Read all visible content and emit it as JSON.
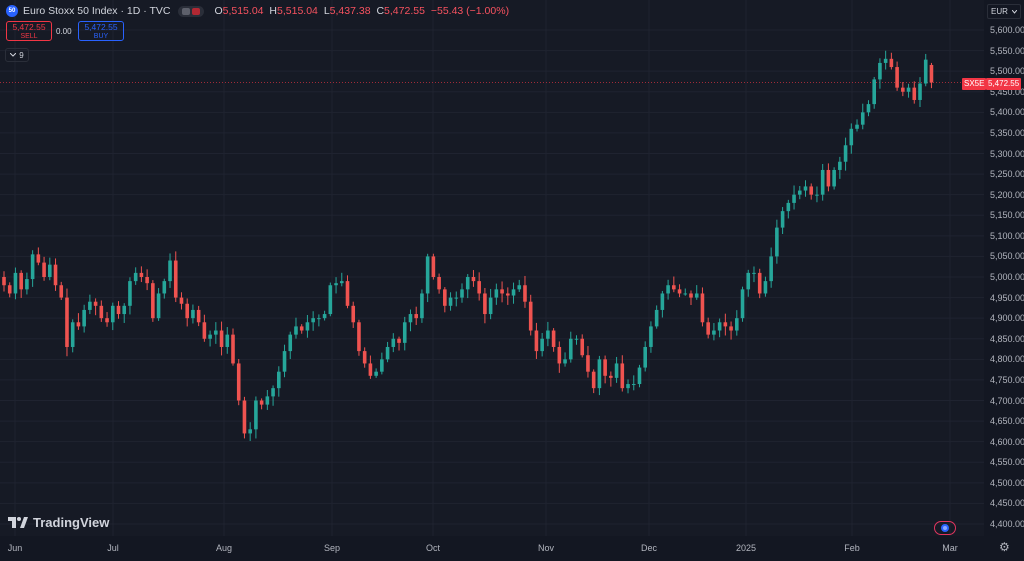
{
  "header": {
    "logo_text": "50",
    "title": "Euro Stoxx 50 Index · 1D · TVC",
    "ohlc": [
      {
        "label": "O",
        "value": "5,515.04"
      },
      {
        "label": "H",
        "value": "5,515.04"
      },
      {
        "label": "L",
        "value": "5,437.38"
      },
      {
        "label": "C",
        "value": "5,472.55"
      },
      {
        "label": "",
        "value": "−55.43 (−1.00%)"
      }
    ]
  },
  "trade": {
    "sell_price": "5,472.55",
    "sell_label": "SELL",
    "spread": "0.00",
    "buy_price": "5,472.55",
    "buy_label": "BUY"
  },
  "indicators_count": "9",
  "currency": "EUR",
  "symbol_tag": "SX5E",
  "last_price_label": "5,472.55",
  "brand": "TradingView",
  "colors": {
    "up": "#26a69a",
    "down": "#ef5350",
    "background": "#161a25",
    "grid": "#1f2330"
  },
  "chart_data": {
    "type": "candlestick",
    "y_ticks": [
      "5,600.00",
      "5,550.00",
      "5,500.00",
      "5,450.00",
      "5,400.00",
      "5,350.00",
      "5,300.00",
      "5,250.00",
      "5,200.00",
      "5,150.00",
      "5,100.00",
      "5,050.00",
      "5,000.00",
      "4,950.00",
      "4,900.00",
      "4,850.00",
      "4,800.00",
      "4,750.00",
      "4,700.00",
      "4,650.00",
      "4,600.00",
      "4,550.00",
      "4,500.00",
      "4,450.00",
      "4,400.00"
    ],
    "x_ticks": [
      "Jun",
      "Jul",
      "Aug",
      "Sep",
      "Oct",
      "Nov",
      "Dec",
      "2025",
      "Feb",
      "Mar"
    ],
    "ylim": [
      4385,
      5625
    ],
    "last_close": 5472.55,
    "closes": [
      4980,
      4960,
      5010,
      4970,
      4995,
      5055,
      5035,
      5000,
      5030,
      4980,
      4950,
      4830,
      4890,
      4880,
      4920,
      4940,
      4930,
      4900,
      4890,
      4930,
      4910,
      4930,
      4990,
      5010,
      5000,
      4985,
      4900,
      4960,
      4990,
      5040,
      4950,
      4935,
      4900,
      4920,
      4890,
      4850,
      4860,
      4870,
      4830,
      4860,
      4790,
      4700,
      4620,
      4630,
      4700,
      4690,
      4710,
      4730,
      4770,
      4820,
      4860,
      4880,
      4870,
      4890,
      4900,
      4900,
      4910,
      4980,
      4985,
      4990,
      4930,
      4890,
      4820,
      4790,
      4760,
      4770,
      4800,
      4830,
      4850,
      4840,
      4890,
      4910,
      4900,
      4960,
      5050,
      5000,
      4970,
      4930,
      4950,
      4950,
      4970,
      5000,
      4990,
      4960,
      4910,
      4950,
      4970,
      4960,
      4955,
      4970,
      4980,
      4940,
      4870,
      4820,
      4850,
      4870,
      4830,
      4790,
      4800,
      4850,
      4850,
      4810,
      4770,
      4730,
      4800,
      4760,
      4755,
      4790,
      4730,
      4740,
      4740,
      4780,
      4830,
      4880,
      4920,
      4960,
      4980,
      4970,
      4960,
      4960,
      4950,
      4960,
      4890,
      4860,
      4870,
      4890,
      4880,
      4870,
      4900,
      4970,
      5010,
      5010,
      4960,
      4990,
      5050,
      5120,
      5160,
      5180,
      5200,
      5210,
      5220,
      5200,
      5200,
      5260,
      5220,
      5260,
      5280,
      5320,
      5360,
      5370,
      5400,
      5420,
      5480,
      5520,
      5530,
      5510,
      5460,
      5450,
      5460,
      5430,
      5470,
      5528,
      5472.55
    ]
  }
}
